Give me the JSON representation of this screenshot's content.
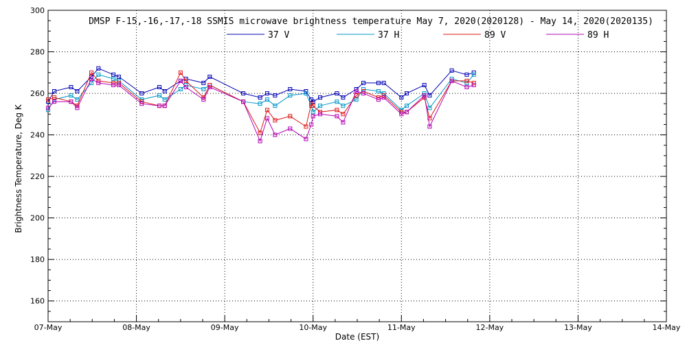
{
  "chart_data": {
    "type": "line",
    "title": "DMSP F-15,-16,-17,-18 SSMIS microwave brightness temperature May  7, 2020(2020128) - May 14, 2020(2020135)",
    "xlabel": "Date (EST)",
    "ylabel": "Brightness Temperature, Deg K",
    "xlim": [
      0,
      7
    ],
    "ylim": [
      150,
      300
    ],
    "x_unit": "days since 07-May 00:00 EST",
    "xticks": [
      {
        "value": 0,
        "label": "07-May"
      },
      {
        "value": 1,
        "label": "08-May"
      },
      {
        "value": 2,
        "label": "09-May"
      },
      {
        "value": 3,
        "label": "10-May"
      },
      {
        "value": 4,
        "label": "11-May"
      },
      {
        "value": 5,
        "label": "12-May"
      },
      {
        "value": 6,
        "label": "13-May"
      },
      {
        "value": 7,
        "label": "14-May"
      }
    ],
    "yticks": [
      160,
      180,
      200,
      220,
      240,
      260,
      280,
      300
    ],
    "grid": true,
    "legend_position": "top-center",
    "x": [
      0.0,
      0.07,
      0.26,
      0.33,
      0.49,
      0.57,
      0.74,
      0.8,
      1.06,
      1.26,
      1.32,
      1.5,
      1.56,
      1.76,
      1.83,
      2.21,
      2.4,
      2.48,
      2.57,
      2.74,
      2.92,
      2.98,
      3.0,
      3.08,
      3.27,
      3.34,
      3.49,
      3.57,
      3.74,
      3.8,
      4.0,
      4.06,
      4.26,
      4.32,
      4.57,
      4.74,
      4.82
    ],
    "series": [
      {
        "name": "37 V",
        "color": "#0000b4",
        "values": [
          256,
          261,
          263,
          261,
          268,
          272,
          269,
          268,
          260,
          263,
          261,
          266,
          267,
          265,
          268,
          260,
          258,
          260,
          259,
          262,
          261,
          257,
          256,
          258,
          260,
          258,
          262,
          265,
          265,
          265,
          258,
          260,
          264,
          259,
          271,
          269,
          270
        ]
      },
      {
        "name": "37 H",
        "color": "#0096c8",
        "values": [
          252,
          257,
          259,
          257,
          265,
          269,
          267,
          266,
          257,
          259,
          257,
          262,
          264,
          262,
          264,
          256,
          255,
          257,
          254,
          259,
          260,
          254,
          251,
          254,
          256,
          254,
          257,
          262,
          261,
          260,
          252,
          254,
          260,
          253,
          267,
          265,
          269
        ]
      },
      {
        "name": "89 V",
        "color": "#dc1414",
        "values": [
          257,
          258,
          256,
          254,
          270,
          266,
          265,
          265,
          256,
          254,
          254,
          270,
          266,
          258,
          264,
          256,
          241,
          252,
          247,
          249,
          244,
          255,
          254,
          251,
          252,
          250,
          259,
          261,
          258,
          259,
          251,
          251,
          258,
          248,
          266,
          266,
          265
        ]
      },
      {
        "name": "89 H",
        "color": "#b400b4",
        "values": [
          253,
          256,
          256,
          253,
          267,
          265,
          264,
          264,
          255,
          254,
          254,
          266,
          263,
          257,
          263,
          256,
          237,
          248,
          240,
          243,
          238,
          245,
          249,
          250,
          249,
          246,
          261,
          260,
          257,
          258,
          250,
          251,
          259,
          244,
          266,
          263,
          264
        ]
      }
    ]
  }
}
